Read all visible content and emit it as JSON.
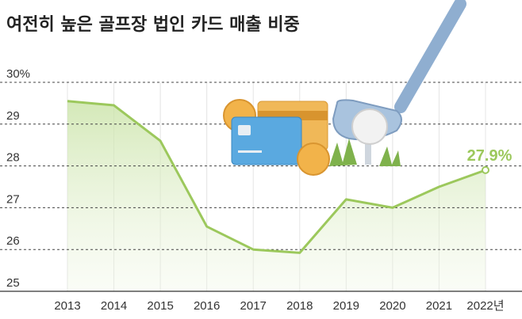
{
  "chart_data": {
    "type": "line",
    "title": "여전히 높은 골프장 법인 카드 매출 비중",
    "categories": [
      "2013",
      "2014",
      "2015",
      "2016",
      "2017",
      "2018",
      "2019",
      "2020",
      "2021",
      "2022년"
    ],
    "values": [
      29.55,
      29.45,
      28.6,
      26.55,
      26.0,
      25.92,
      27.2,
      27.0,
      27.5,
      27.9
    ],
    "value_labels": [
      null,
      null,
      null,
      null,
      null,
      null,
      null,
      null,
      null,
      "27.9%"
    ],
    "color": "#9cc85c",
    "ylim": [
      25,
      30
    ],
    "yticks": [
      25,
      26,
      27,
      28,
      29,
      {
        "value": 30,
        "label": "30%"
      }
    ],
    "grid": true
  }
}
